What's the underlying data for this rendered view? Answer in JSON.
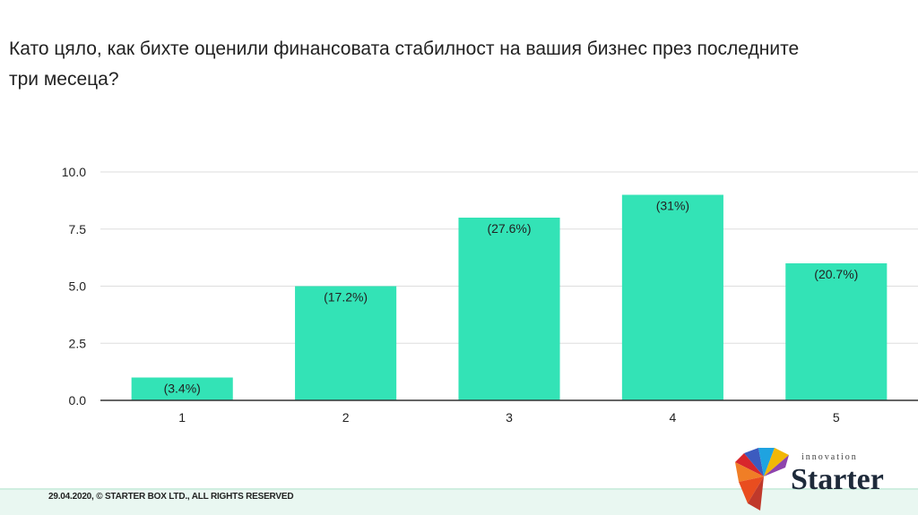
{
  "title": "Като цяло, как бихте оценили финансовата стабилност на вашия бизнес през последните три месеца?",
  "footer": "29.04.2020, © STARTER BOX LTD., ALL RIGHTS RESERVED",
  "logo": {
    "small": "innovation",
    "big": "Starter"
  },
  "colors": {
    "bar": "#33e3b6",
    "grid": "#dddddd",
    "axis": "#333333",
    "text": "#222222"
  },
  "chart_data": {
    "type": "bar",
    "categories": [
      "1",
      "2",
      "3",
      "4",
      "5"
    ],
    "values": [
      1,
      5,
      8,
      9,
      6
    ],
    "data_labels": [
      "(3.4%)",
      "(17.2%)",
      "(27.6%)",
      "(31%)",
      "(20.7%)"
    ],
    "yticks": [
      "0.0",
      "2.5",
      "5.0",
      "7.5",
      "10.0"
    ],
    "ylim": [
      0,
      10
    ],
    "grid": true,
    "xlabel": "",
    "ylabel": ""
  }
}
